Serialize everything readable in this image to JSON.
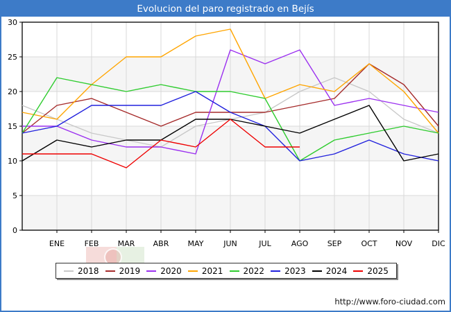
{
  "window": {
    "title": "Evolucion del paro registrado en Bejís"
  },
  "footer": {
    "url_label": "http://www.foro-ciudad.com"
  },
  "theme": {
    "header_bg": "#3d7bc8",
    "frame_border": "#3d7bc8",
    "plot_band_alt": "#f5f5f5",
    "plot_bg": "#ffffff",
    "grid": "#d9d9d9",
    "axis": "#000000",
    "legend_shadow": "#8c8c8c"
  },
  "chart_data": {
    "type": "line",
    "title": "Evolucion del paro registrado en Bejís",
    "xlabel": "",
    "ylabel": "",
    "categories": [
      "ENE",
      "FEB",
      "MAR",
      "ABR",
      "MAY",
      "JUN",
      "JUL",
      "AGO",
      "SEP",
      "OCT",
      "NOV",
      "DIC"
    ],
    "y_ticks": [
      0,
      5,
      10,
      15,
      20,
      25,
      30
    ],
    "ylim": [
      0,
      30
    ],
    "grid": true,
    "legend_position": "bottom",
    "edge_note": "each series begins at the left axis edge with the previous December value, then ENE-DIC at gridlines; 2025 data ends at AGO",
    "series": [
      {
        "name": "2018",
        "color": "#c8c8c8",
        "edge_value": 18,
        "values": [
          16,
          14,
          13,
          12,
          15,
          16,
          17,
          20,
          22,
          20,
          16,
          14
        ]
      },
      {
        "name": "2019",
        "color": "#a52a2a",
        "edge_value": 14,
        "values": [
          18,
          19,
          17,
          15,
          17,
          17,
          17,
          18,
          19,
          24,
          21,
          15
        ]
      },
      {
        "name": "2020",
        "color": "#9b30f0",
        "edge_value": 15,
        "values": [
          15,
          13,
          12,
          12,
          11,
          26,
          24,
          26,
          18,
          19,
          18,
          17
        ]
      },
      {
        "name": "2021",
        "color": "#ffa500",
        "edge_value": 17,
        "values": [
          16,
          21,
          25,
          25,
          28,
          29,
          19,
          21,
          20,
          24,
          20,
          14
        ]
      },
      {
        "name": "2022",
        "color": "#2ecc2e",
        "edge_value": 14,
        "values": [
          22,
          21,
          20,
          21,
          20,
          20,
          19,
          10,
          13,
          14,
          15,
          14
        ]
      },
      {
        "name": "2023",
        "color": "#2020dd",
        "edge_value": 14,
        "values": [
          15,
          18,
          18,
          18,
          20,
          17,
          15,
          10,
          11,
          13,
          11,
          10
        ]
      },
      {
        "name": "2024",
        "color": "#000000",
        "edge_value": 10,
        "values": [
          13,
          12,
          13,
          13,
          16,
          16,
          15,
          14,
          16,
          18,
          10,
          11
        ]
      },
      {
        "name": "2025",
        "color": "#ee0000",
        "edge_value": 11,
        "values": [
          11,
          11,
          9,
          13,
          12,
          16,
          12,
          12
        ]
      }
    ]
  }
}
